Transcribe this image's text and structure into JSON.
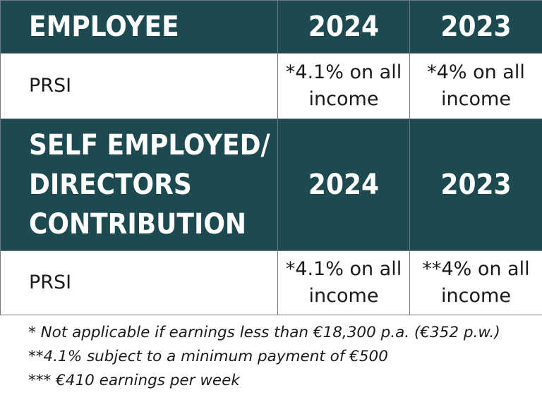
{
  "employee_section": {
    "header": "EMPLOYEE",
    "year_a": "2024",
    "year_b": "2023",
    "row": {
      "label": "PRSI",
      "value_a": "*4.1% on all income",
      "value_b": "*4% on all income"
    }
  },
  "self_employed_section": {
    "header": "SELF EMPLOYED/ DIRECTORS CONTRIBUTION",
    "year_a": "2024",
    "year_b": "2023",
    "row": {
      "label": "PRSI",
      "value_a": "*4.1% on all income",
      "value_b": "**4% on all income"
    }
  },
  "footnotes": [
    "* Not applicable if earnings less than €18,300 p.a. (€352 p.w.)",
    "**4.1% subject to a minimum payment of €500",
    "*** €410 earnings per week"
  ],
  "colors": {
    "header_background": "#1c4a50",
    "header_text": "#ffffff",
    "border": "#6f7a80"
  }
}
